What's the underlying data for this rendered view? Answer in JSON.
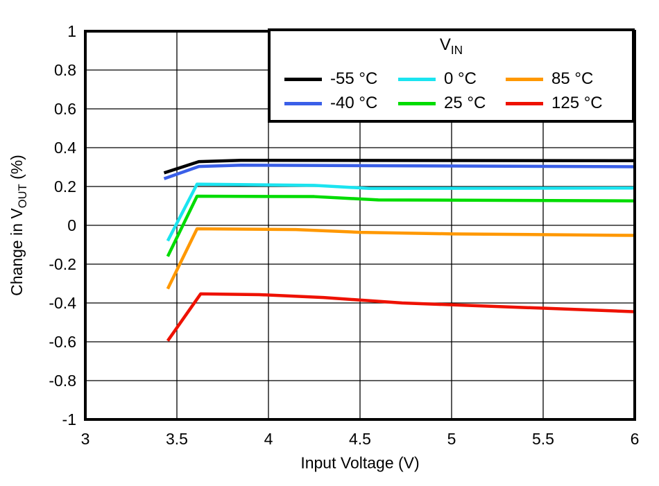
{
  "chart_data": {
    "type": "line",
    "title": "",
    "grid": true,
    "x_axis": {
      "label": "Input Voltage (V)",
      "range": [
        3,
        6
      ],
      "tick_values": [
        3,
        3.5,
        4,
        4.5,
        5,
        5.5,
        6
      ],
      "tick_labels": [
        "3",
        "3.5",
        "4",
        "4.5",
        "5",
        "5.5",
        "6"
      ]
    },
    "y_axis": {
      "label_prefix": "Change in V",
      "label_sub": "OUT",
      "label_suffix": " (%)",
      "range": [
        -1,
        1
      ],
      "tick_values": [
        -1,
        -0.8,
        -0.6,
        -0.4,
        -0.2,
        0,
        0.2,
        0.4,
        0.6,
        0.8,
        1
      ],
      "tick_labels": [
        "-1",
        "-0.8",
        "-0.6",
        "-0.4",
        "-0.2",
        "0",
        "0.2",
        "0.4",
        "0.6",
        "0.8",
        "1"
      ]
    },
    "legend": {
      "title_main": "V",
      "title_sub": "IN",
      "position": "top-right-inside",
      "columns": 3,
      "rows": 2
    },
    "series": [
      {
        "name": "minus-55c",
        "label": "-55 °C",
        "color": "#000000",
        "points": [
          [
            3.43,
            0.27
          ],
          [
            3.62,
            0.328
          ],
          [
            3.85,
            0.335
          ],
          [
            6.0,
            0.333
          ]
        ]
      },
      {
        "name": "minus-40c",
        "label": "-40 °C",
        "color": "#3A5FE8",
        "points": [
          [
            3.43,
            0.24
          ],
          [
            3.62,
            0.303
          ],
          [
            3.85,
            0.31
          ],
          [
            6.0,
            0.302
          ]
        ]
      },
      {
        "name": "0c",
        "label": "0 °C",
        "color": "#1BE4F0",
        "points": [
          [
            3.45,
            -0.08
          ],
          [
            3.61,
            0.212
          ],
          [
            4.25,
            0.206
          ],
          [
            4.55,
            0.19
          ],
          [
            6.0,
            0.192
          ]
        ]
      },
      {
        "name": "25c",
        "label": "25 °C",
        "color": "#00DC00",
        "points": [
          [
            3.45,
            -0.16
          ],
          [
            3.61,
            0.15
          ],
          [
            4.25,
            0.148
          ],
          [
            4.6,
            0.131
          ],
          [
            6.0,
            0.126
          ]
        ]
      },
      {
        "name": "85c",
        "label": "85 °C",
        "color": "#FF9800",
        "points": [
          [
            3.45,
            -0.327
          ],
          [
            3.61,
            -0.018
          ],
          [
            4.15,
            -0.022
          ],
          [
            4.5,
            -0.036
          ],
          [
            5.0,
            -0.044
          ],
          [
            6.0,
            -0.052
          ]
        ]
      },
      {
        "name": "125c",
        "label": "125 °C",
        "color": "#EE1100",
        "points": [
          [
            3.45,
            -0.595
          ],
          [
            3.63,
            -0.353
          ],
          [
            3.95,
            -0.357
          ],
          [
            4.3,
            -0.372
          ],
          [
            4.73,
            -0.4
          ],
          [
            5.5,
            -0.427
          ],
          [
            6.0,
            -0.445
          ]
        ]
      }
    ]
  }
}
